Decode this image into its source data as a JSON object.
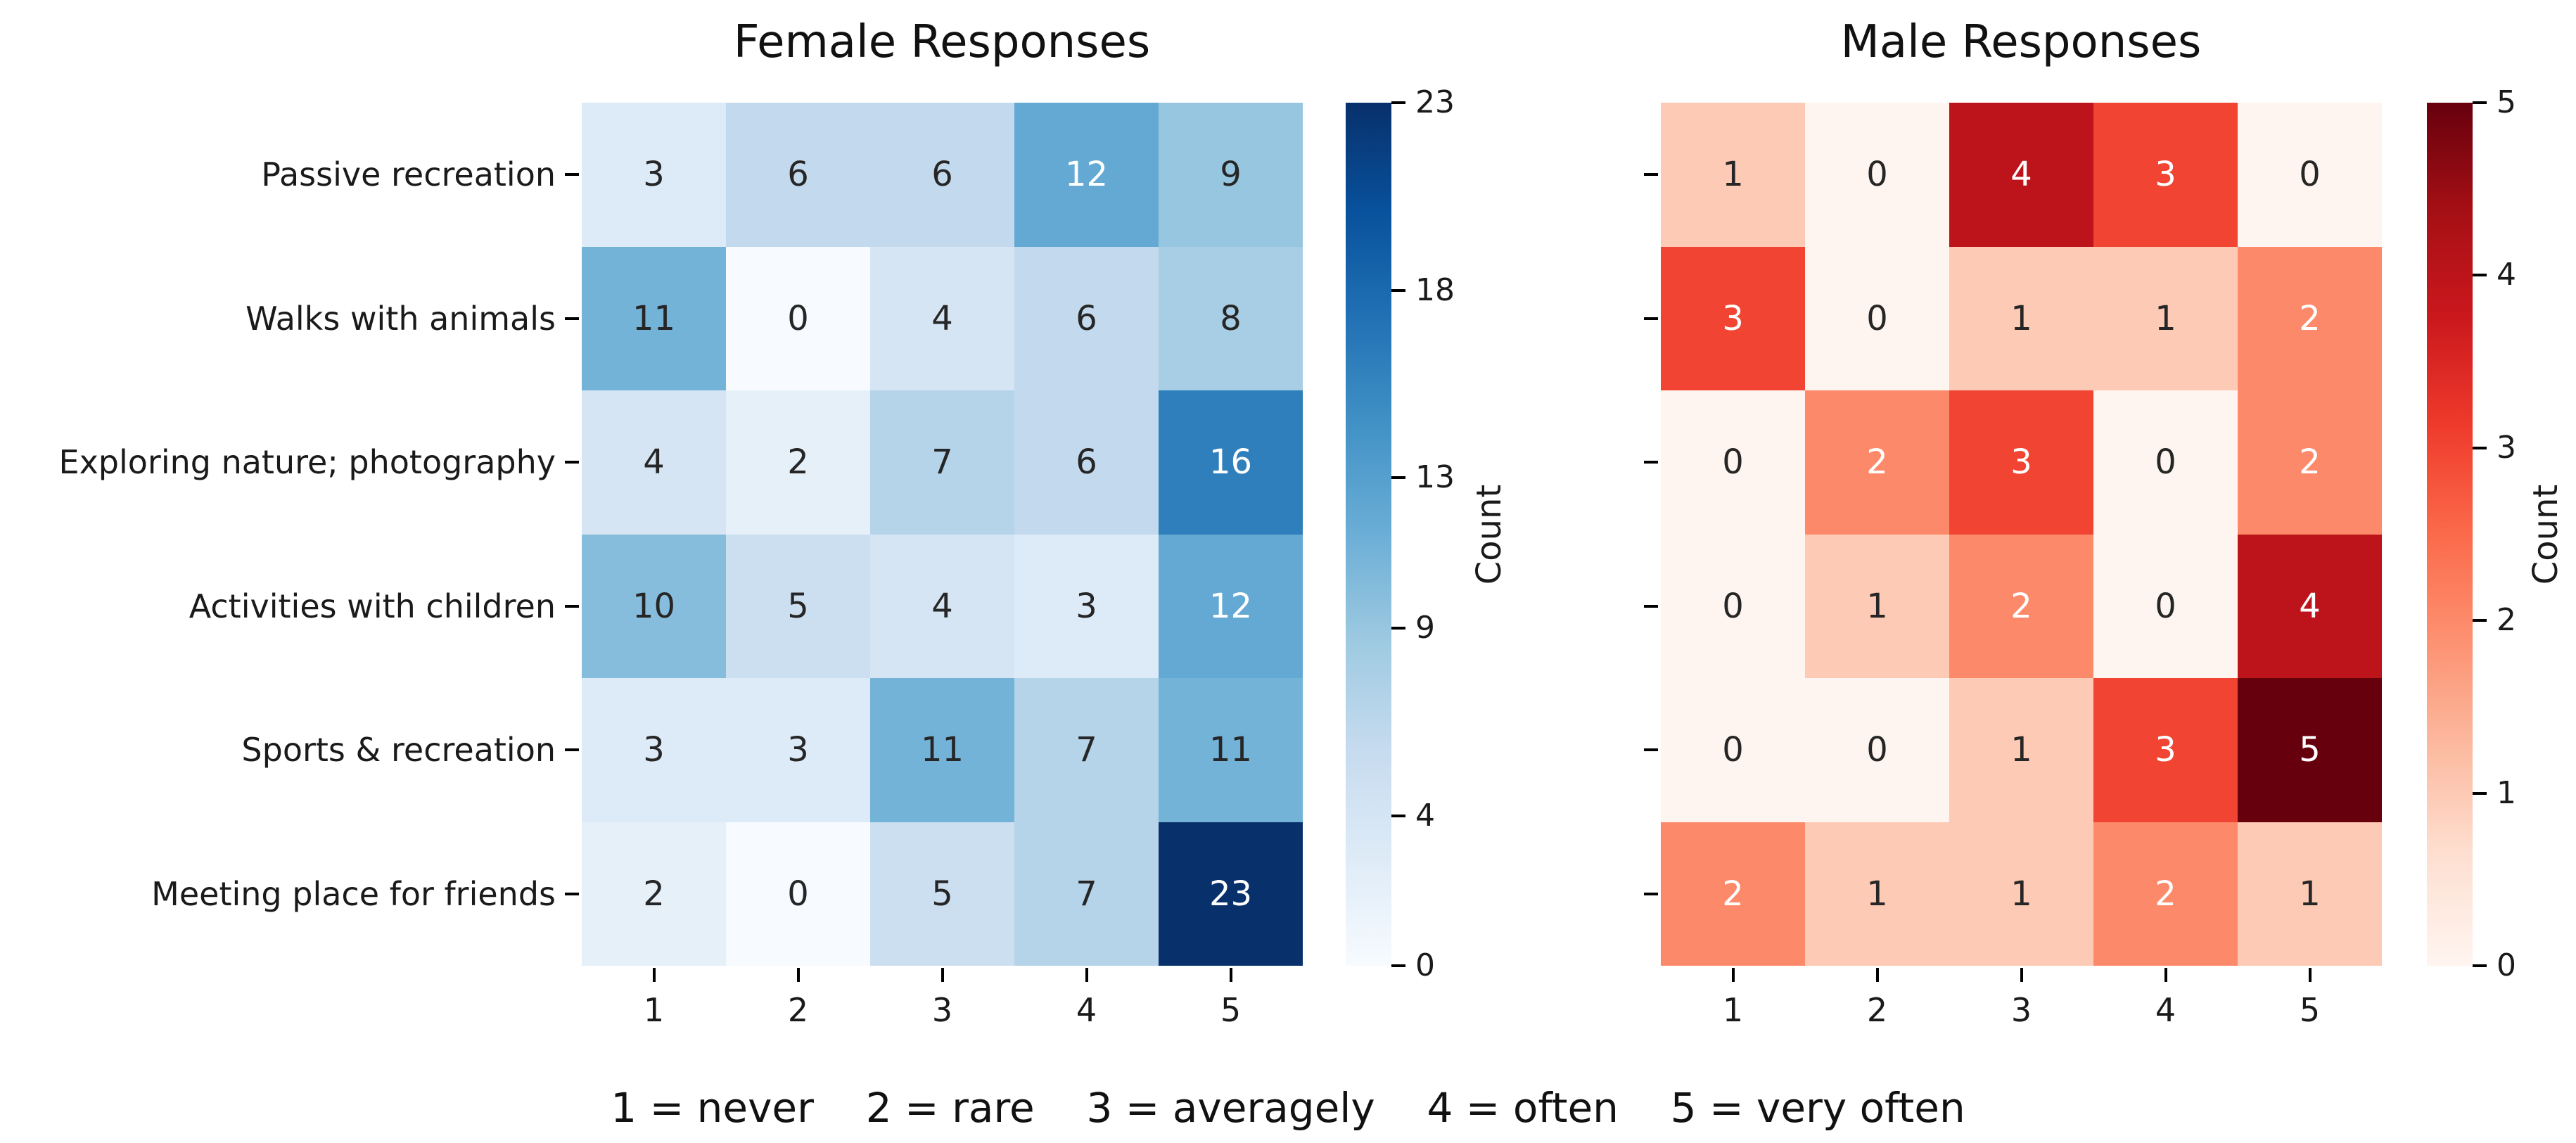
{
  "caption": "1 = never    2 = rare    3 = averagely    4 = often    5 = very often",
  "chart_data": [
    {
      "type": "heatmap",
      "title": "Female Responses",
      "colormap": "Blues",
      "vmin": 0,
      "vmax": 23,
      "rows": [
        "Passive recreation",
        "Walks with animals",
        "Exploring nature; photography",
        "Activities with children",
        "Sports & recreation",
        "Meeting place for friends"
      ],
      "columns": [
        "1",
        "2",
        "3",
        "4",
        "5"
      ],
      "values": [
        [
          3,
          6,
          6,
          12,
          9
        ],
        [
          11,
          0,
          4,
          6,
          8
        ],
        [
          4,
          2,
          7,
          6,
          16
        ],
        [
          10,
          5,
          4,
          3,
          12
        ],
        [
          3,
          3,
          11,
          7,
          11
        ],
        [
          2,
          0,
          5,
          7,
          23
        ]
      ],
      "colorbar": {
        "label": "Count",
        "ticks": [
          0,
          4,
          9,
          13,
          18,
          23
        ]
      },
      "show_row_labels": true,
      "legend_position": "right"
    },
    {
      "type": "heatmap",
      "title": "Male Responses",
      "colormap": "Reds",
      "vmin": 0,
      "vmax": 5,
      "rows": [
        "Passive recreation",
        "Walks with animals",
        "Exploring nature; photography",
        "Activities with children",
        "Sports & recreation",
        "Meeting place for friends"
      ],
      "columns": [
        "1",
        "2",
        "3",
        "4",
        "5"
      ],
      "values": [
        [
          1,
          0,
          4,
          3,
          0
        ],
        [
          3,
          0,
          1,
          1,
          2
        ],
        [
          0,
          2,
          3,
          0,
          2
        ],
        [
          0,
          1,
          2,
          0,
          4
        ],
        [
          0,
          0,
          1,
          3,
          5
        ],
        [
          2,
          1,
          1,
          2,
          1
        ]
      ],
      "colorbar": {
        "label": "Count",
        "ticks": [
          0,
          1,
          2,
          3,
          4,
          5
        ]
      },
      "show_row_labels": false,
      "legend_position": "right"
    }
  ],
  "colors": {
    "blues_anchors": [
      "#f7fbff",
      "#deebf7",
      "#c6dbef",
      "#9ecae1",
      "#6baed6",
      "#4292c6",
      "#2171b5",
      "#08519c",
      "#08306b"
    ],
    "reds_anchors": [
      "#fff5f0",
      "#fee0d2",
      "#fcbba1",
      "#fc9272",
      "#fb6a4a",
      "#ef3b2c",
      "#cb181d",
      "#a50f15",
      "#67000d"
    ],
    "annot_dark": "#262626",
    "annot_light": "#ffffff",
    "tick_color": "#000000"
  }
}
